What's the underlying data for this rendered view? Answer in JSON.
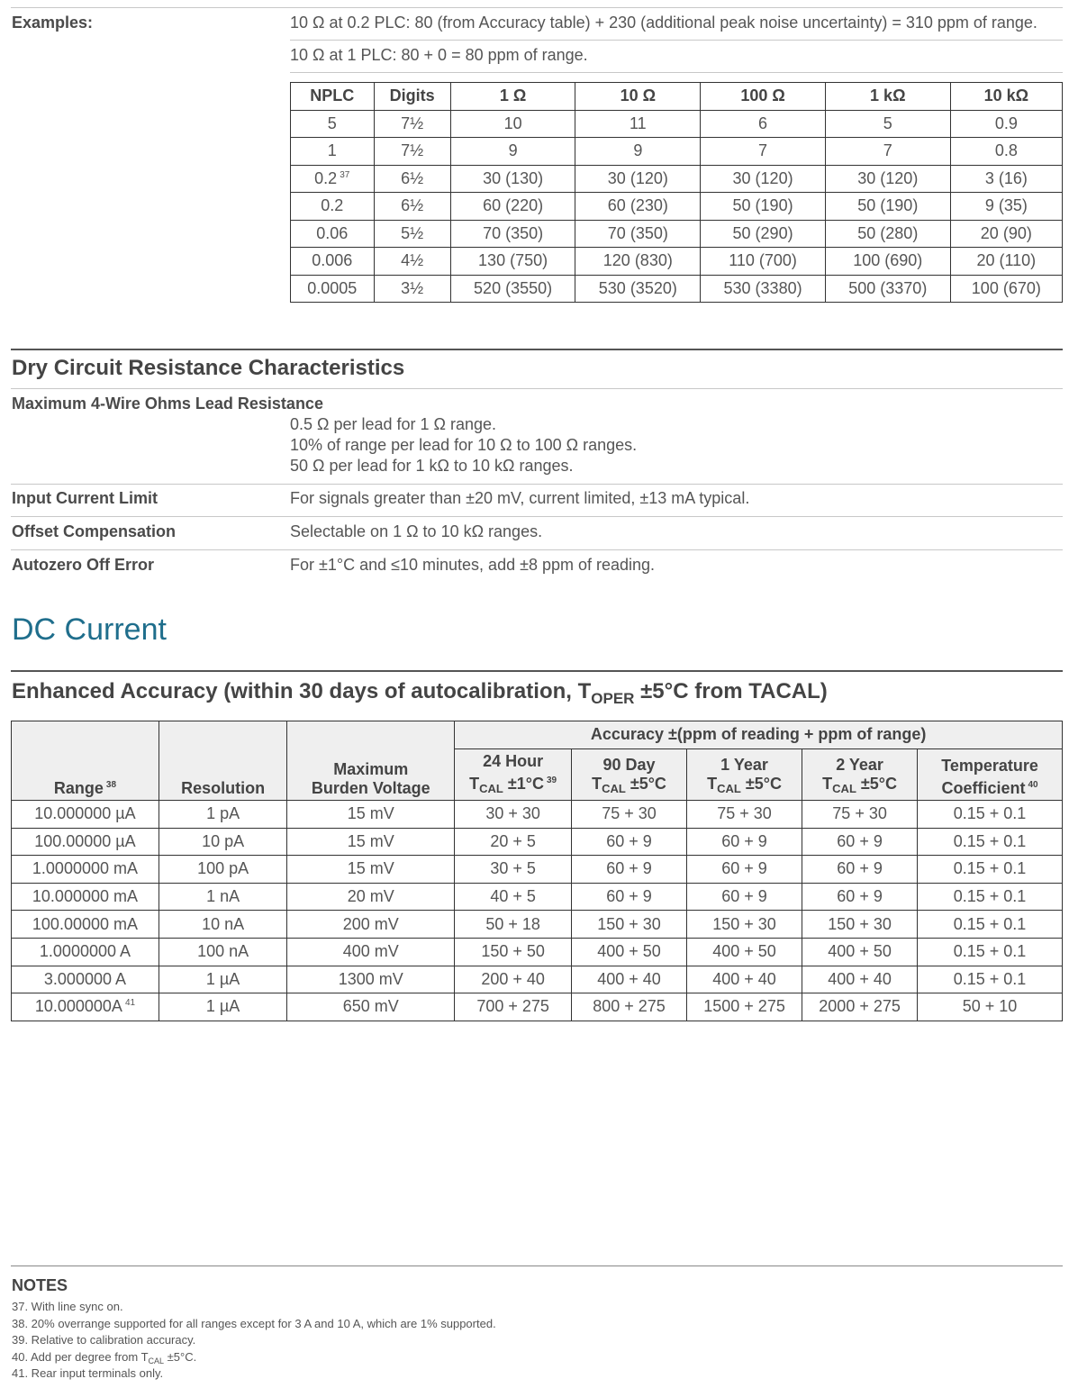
{
  "examples": {
    "label": "Examples:",
    "lines": [
      "10 Ω at 0.2 PLC: 80 (from Accuracy table) + 230 (additional peak noise uncertainty) = 310 ppm of range.",
      "10 Ω at 1 PLC: 80 + 0 = 80 ppm of range."
    ]
  },
  "nplc_table": {
    "header": [
      "NPLC",
      "Digits",
      "1 Ω",
      "10 Ω",
      "100 Ω",
      "1 kΩ",
      "10 kΩ"
    ],
    "rows": [
      [
        "5",
        "7½",
        "10",
        "11",
        "6",
        "5",
        "0.9"
      ],
      [
        "1",
        "7½",
        "9",
        "9",
        "7",
        "7",
        "0.8"
      ],
      [
        {
          "text": "0.2",
          "note": "37"
        },
        "6½",
        "30 (130)",
        "30 (120)",
        "30 (120)",
        "30 (120)",
        "3 (16)"
      ],
      [
        "0.2",
        "6½",
        "60 (220)",
        "60 (230)",
        "50 (190)",
        "50 (190)",
        "9 (35)"
      ],
      [
        "0.06",
        "5½",
        "70 (350)",
        "70 (350)",
        "50 (290)",
        "50 (280)",
        "20 (90)"
      ],
      [
        "0.006",
        "4½",
        "130 (750)",
        "120 (830)",
        "110 (700)",
        "100 (690)",
        "20 (110)"
      ],
      [
        "0.0005",
        "3½",
        "520 (3550)",
        "530 (3520)",
        "530 (3380)",
        "500 (3370)",
        "100 (670)"
      ]
    ]
  },
  "dry_circuit": {
    "title": "Dry Circuit Resistance Characteristics",
    "lead_resistance": {
      "label": "Maximum 4-Wire Ohms Lead Resistance",
      "lines": [
        "0.5 Ω per lead for 1 Ω range.",
        "10% of range per lead for 10 Ω to 100 Ω ranges.",
        "50 Ω per lead for 1 kΩ to 10 kΩ ranges."
      ]
    },
    "input_current_limit": {
      "label": "Input Current Limit",
      "value": "For signals greater than ±20 mV, current limited, ±13 mA typical."
    },
    "offset_compensation": {
      "label": "Offset Compensation",
      "value": "Selectable on 1 Ω to 10 kΩ ranges."
    },
    "autozero_off_error": {
      "label": "Autozero Off Error",
      "value": "For ±1°C and ≤10 minutes, add ±8 ppm of reading."
    }
  },
  "section_title": "DC Current",
  "accuracy_table": {
    "title": [
      "Enhanced Accuracy (within 30 days of autocalibration, T",
      "OPER",
      " ±5°C from T",
      "ACAL",
      ")"
    ],
    "group_header": "Accuracy ±(ppm of reading + ppm of range)",
    "columns": [
      {
        "lines": [
          "Range"
        ],
        "note": "38"
      },
      {
        "lines": [
          "Resolution"
        ]
      },
      {
        "lines": [
          "Maximum",
          "Burden Voltage"
        ]
      },
      {
        "lines": [
          "24 Hour",
          [
            "T",
            "CAL",
            " ±1°C"
          ]
        ],
        "note": "39"
      },
      {
        "lines": [
          "90 Day",
          [
            "T",
            "CAL",
            " ±5°C"
          ]
        ]
      },
      {
        "lines": [
          "1 Year",
          [
            "T",
            "CAL",
            " ±5°C"
          ]
        ]
      },
      {
        "lines": [
          "2 Year",
          [
            "T",
            "CAL",
            " ±5°C"
          ]
        ]
      },
      {
        "lines": [
          "Temperature",
          "Coefficient"
        ],
        "note": "40"
      }
    ],
    "rows": [
      [
        "10.000000 µA",
        "1 pA",
        "15 mV",
        "30 + 30",
        "75 + 30",
        "75 + 30",
        "75 + 30",
        "0.15 + 0.1"
      ],
      [
        "100.00000 µA",
        "10 pA",
        "15 mV",
        "20 + 5",
        "60 + 9",
        "60 + 9",
        "60 + 9",
        "0.15 + 0.1"
      ],
      [
        "1.0000000 mA",
        "100 pA",
        "15 mV",
        "30 + 5",
        "60 + 9",
        "60 + 9",
        "60 + 9",
        "0.15 + 0.1"
      ],
      [
        "10.000000 mA",
        "1 nA",
        "20 mV",
        "40 + 5",
        "60 + 9",
        "60 + 9",
        "60 + 9",
        "0.15 + 0.1"
      ],
      [
        "100.00000 mA",
        "10 nA",
        "200 mV",
        "50 + 18",
        "150 + 30",
        "150 + 30",
        "150 + 30",
        "0.15 + 0.1"
      ],
      [
        "1.0000000 A",
        "100 nA",
        "400 mV",
        "150 + 50",
        "400 + 50",
        "400 + 50",
        "400 + 50",
        "0.15 + 0.1"
      ],
      [
        "3.000000 A",
        "1 µA",
        "1300 mV",
        "200 + 40",
        "400 + 40",
        "400 + 40",
        "400 + 40",
        "0.15 + 0.1"
      ],
      [
        {
          "text": "10.000000A",
          "note": "41"
        },
        "1 µA",
        "650 mV",
        "700 + 275",
        "800 + 275",
        "1500 + 275",
        "2000 + 275",
        "50 + 10"
      ]
    ]
  },
  "notes": {
    "title": "NOTES",
    "items": [
      "37. With line sync on.",
      "38. 20% overrange supported for all ranges except for 3 A and 10 A, which are 1% supported.",
      "39. Relative to calibration accuracy.",
      [
        "40. Add per degree from T",
        "CAL",
        " ±5°C."
      ],
      "41. Rear input terminals only."
    ]
  }
}
